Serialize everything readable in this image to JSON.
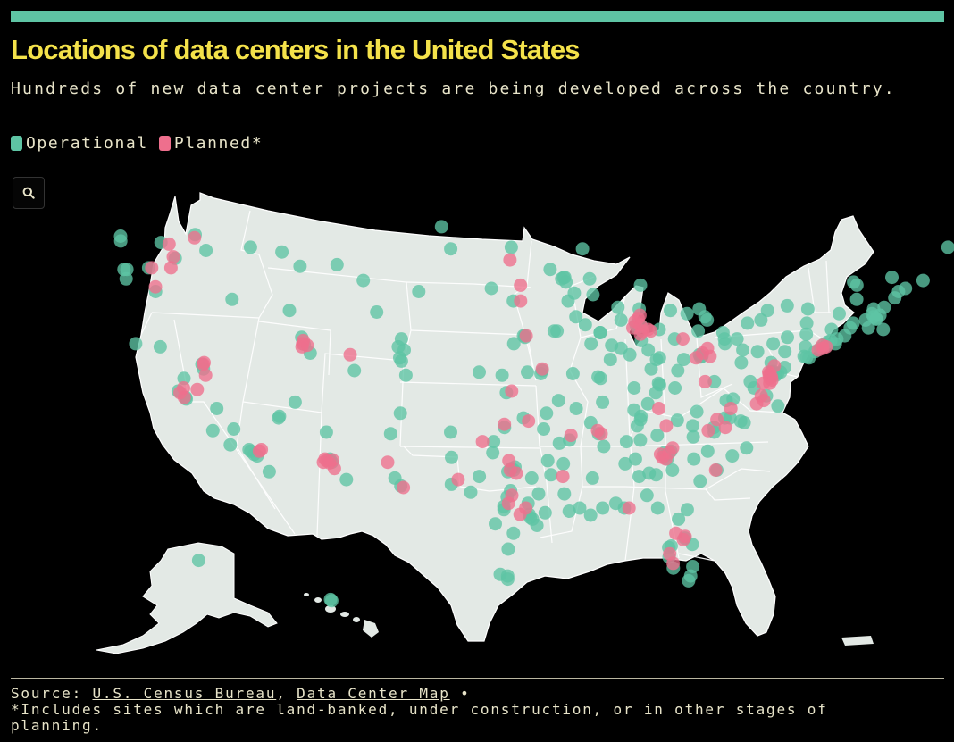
{
  "header": {
    "title": "Locations of data centers in the United States",
    "subtitle": "Hundreds of new data center projects are being developed across the country."
  },
  "legend": [
    {
      "label": "Operational",
      "color": "#5ec4a4"
    },
    {
      "label": "Planned*",
      "color": "#ee6f8d"
    }
  ],
  "controls": {
    "search_icon": "search-icon"
  },
  "colors": {
    "operational": "#5ec4a4",
    "planned": "#ee6f8d",
    "land": "#e3e9e5",
    "border": "#ffffff",
    "background": "#000000",
    "accent_bar": "#5ec4a4",
    "title": "#f4e24a"
  },
  "footer": {
    "source_label": "Source:",
    "source_1": "U.S. Census Bureau",
    "separator": ",",
    "source_2": "Data Center Map",
    "bullet": "•",
    "note": "*Includes sites which are land-banked, under construction, or in other stages of planning."
  },
  "map_data": {
    "operational": [
      [
        47.6,
        -122.3
      ],
      [
        47.3,
        -122.4
      ],
      [
        47.2,
        -119.8
      ],
      [
        46.2,
        -119.2
      ],
      [
        45.6,
        -121.2
      ],
      [
        45.5,
        -122.7
      ],
      [
        45.5,
        -122.9
      ],
      [
        44.1,
        -121.3
      ],
      [
        44.9,
        -123.0
      ],
      [
        47.7,
        -117.4
      ],
      [
        46.7,
        -117.0
      ],
      [
        43.6,
        -116.2
      ],
      [
        42.9,
        -112.4
      ],
      [
        45.7,
        -111.0
      ],
      [
        46.6,
        -112.0
      ],
      [
        45.8,
        -108.5
      ],
      [
        46.9,
        -114.0
      ],
      [
        40.76,
        -111.9
      ],
      [
        41.2,
        -111.97
      ],
      [
        40.2,
        -111.6
      ],
      [
        37.1,
        -113.6
      ],
      [
        37.8,
        -122.3
      ],
      [
        37.4,
        -121.9
      ],
      [
        37.3,
        -121.9
      ],
      [
        38.6,
        -121.5
      ],
      [
        39.5,
        -119.8
      ],
      [
        36.7,
        -119.8
      ],
      [
        35.4,
        -119.0
      ],
      [
        34.1,
        -118.3
      ],
      [
        34.0,
        -118.2
      ],
      [
        33.8,
        -118.0
      ],
      [
        33.7,
        -117.8
      ],
      [
        32.7,
        -117.2
      ],
      [
        34.4,
        -119.7
      ],
      [
        35.3,
        -120.7
      ],
      [
        40.8,
        -124.1
      ],
      [
        39.2,
        -119.8
      ],
      [
        40.6,
        -122.4
      ],
      [
        36.1,
        -115.2
      ],
      [
        36.2,
        -115.1
      ],
      [
        33.4,
        -112.0
      ],
      [
        33.5,
        -111.9
      ],
      [
        32.2,
        -110.9
      ],
      [
        33.3,
        -111.8
      ],
      [
        35.2,
        -111.7
      ],
      [
        35.1,
        -106.6
      ],
      [
        32.3,
        -106.8
      ],
      [
        36.4,
        -105.6
      ],
      [
        39.7,
        -105.0
      ],
      [
        39.9,
        -105.1
      ],
      [
        40.6,
        -105.1
      ],
      [
        38.8,
        -104.8
      ],
      [
        40.4,
        -104.7
      ],
      [
        39.1,
        -108.6
      ],
      [
        41.1,
        -104.8
      ],
      [
        42.8,
        -106.3
      ],
      [
        44.8,
        -106.9
      ],
      [
        46.9,
        -96.8
      ],
      [
        46.8,
        -100.8
      ],
      [
        48.2,
        -101.3
      ],
      [
        43.5,
        -96.7
      ],
      [
        44.1,
        -103.2
      ],
      [
        44.3,
        -98.2
      ],
      [
        41.3,
        -96.0
      ],
      [
        40.8,
        -96.7
      ],
      [
        39.1,
        -94.6
      ],
      [
        39.0,
        -95.7
      ],
      [
        37.7,
        -97.3
      ],
      [
        38.8,
        -97.6
      ],
      [
        39.0,
        -99.3
      ],
      [
        35.5,
        -97.5
      ],
      [
        36.1,
        -96.0
      ],
      [
        34.6,
        -98.4
      ],
      [
        35.2,
        -101.8
      ],
      [
        33.6,
        -101.9
      ],
      [
        31.8,
        -106.4
      ],
      [
        31.9,
        -102.1
      ],
      [
        32.8,
        -96.8
      ],
      [
        32.7,
        -97.3
      ],
      [
        33.0,
        -96.7
      ],
      [
        32.9,
        -97.0
      ],
      [
        30.3,
        -97.7
      ],
      [
        30.5,
        -97.7
      ],
      [
        29.4,
        -98.5
      ],
      [
        29.8,
        -95.4
      ],
      [
        29.7,
        -95.2
      ],
      [
        30.0,
        -95.5
      ],
      [
        27.8,
        -97.4
      ],
      [
        26.2,
        -98.2
      ],
      [
        31.5,
        -97.1
      ],
      [
        33.9,
        -98.5
      ],
      [
        31.1,
        -97.4
      ],
      [
        29.3,
        -94.8
      ],
      [
        26.1,
        -97.5
      ],
      [
        25.9,
        -97.5
      ],
      [
        30.1,
        -94.1
      ],
      [
        28.8,
        -96.9
      ],
      [
        32.4,
        -99.7
      ],
      [
        31.4,
        -100.5
      ],
      [
        44.98,
        -93.27
      ],
      [
        44.9,
        -93.4
      ],
      [
        45.5,
        -94.2
      ],
      [
        46.8,
        -92.1
      ],
      [
        44.0,
        -92.5
      ],
      [
        43.5,
        -92.9
      ],
      [
        41.6,
        -93.6
      ],
      [
        41.6,
        -93.8
      ],
      [
        42.0,
        -91.6
      ],
      [
        41.5,
        -90.5
      ],
      [
        42.5,
        -92.3
      ],
      [
        41.3,
        -95.9
      ],
      [
        41.2,
        -95.9
      ],
      [
        40.8,
        -91.1
      ],
      [
        38.6,
        -90.2
      ],
      [
        38.7,
        -90.4
      ],
      [
        37.2,
        -93.3
      ],
      [
        38.9,
        -92.3
      ],
      [
        36.4,
        -94.2
      ],
      [
        34.7,
        -92.3
      ],
      [
        35.8,
        -90.7
      ],
      [
        33.2,
        -92.7
      ],
      [
        32.5,
        -93.7
      ],
      [
        30.4,
        -91.1
      ],
      [
        29.95,
        -90.1
      ],
      [
        30.2,
        -92.0
      ],
      [
        32.3,
        -90.2
      ],
      [
        34.3,
        -89.5
      ],
      [
        30.4,
        -89.1
      ],
      [
        43.0,
        -87.9
      ],
      [
        43.1,
        -89.4
      ],
      [
        44.5,
        -88.0
      ],
      [
        44.9,
        -91.5
      ],
      [
        42.3,
        -89.1
      ],
      [
        41.9,
        -87.6
      ],
      [
        41.8,
        -87.9
      ],
      [
        42.0,
        -88.0
      ],
      [
        40.1,
        -88.2
      ],
      [
        39.8,
        -89.6
      ],
      [
        41.5,
        -90.5
      ],
      [
        40.7,
        -89.6
      ],
      [
        42.3,
        -83.0
      ],
      [
        42.5,
        -83.2
      ],
      [
        42.7,
        -84.5
      ],
      [
        42.9,
        -85.7
      ],
      [
        43.0,
        -83.7
      ],
      [
        41.7,
        -86.3
      ],
      [
        39.8,
        -86.2
      ],
      [
        39.9,
        -86.0
      ],
      [
        41.1,
        -85.1
      ],
      [
        40.4,
        -86.9
      ],
      [
        38.0,
        -87.6
      ],
      [
        39.2,
        -86.5
      ],
      [
        39.96,
        -83.0
      ],
      [
        40.0,
        -82.9
      ],
      [
        40.1,
        -83.1
      ],
      [
        41.5,
        -81.7
      ],
      [
        41.1,
        -81.5
      ],
      [
        39.1,
        -84.5
      ],
      [
        39.8,
        -84.2
      ],
      [
        41.6,
        -83.5
      ],
      [
        40.8,
        -81.4
      ],
      [
        38.3,
        -85.8
      ],
      [
        38.0,
        -84.5
      ],
      [
        36.2,
        -86.8
      ],
      [
        36.0,
        -86.8
      ],
      [
        35.1,
        -90.0
      ],
      [
        35.0,
        -85.3
      ],
      [
        35.96,
        -83.9
      ],
      [
        36.5,
        -82.5
      ],
      [
        36.6,
        -87.4
      ],
      [
        33.7,
        -84.4
      ],
      [
        33.8,
        -84.3
      ],
      [
        33.9,
        -84.5
      ],
      [
        33.5,
        -84.2
      ],
      [
        34.0,
        -84.0
      ],
      [
        32.1,
        -81.1
      ],
      [
        33.5,
        -86.8
      ],
      [
        34.7,
        -86.6
      ],
      [
        32.4,
        -86.3
      ],
      [
        30.7,
        -88.0
      ],
      [
        31.2,
        -85.4
      ],
      [
        32.5,
        -84.9
      ],
      [
        32.8,
        -83.6
      ],
      [
        33.5,
        -82.0
      ],
      [
        35.2,
        -80.8
      ],
      [
        35.8,
        -78.6
      ],
      [
        35.9,
        -78.9
      ],
      [
        36.1,
        -79.8
      ],
      [
        36.1,
        -80.2
      ],
      [
        35.6,
        -82.6
      ],
      [
        34.2,
        -77.9
      ],
      [
        35.5,
        -80.9
      ],
      [
        34.0,
        -81.0
      ],
      [
        32.8,
        -79.9
      ],
      [
        34.9,
        -82.4
      ],
      [
        33.7,
        -78.9
      ],
      [
        30.3,
        -81.7
      ],
      [
        28.5,
        -81.4
      ],
      [
        28.0,
        -82.5
      ],
      [
        27.9,
        -82.7
      ],
      [
        26.1,
        -80.1
      ],
      [
        25.8,
        -80.2
      ],
      [
        26.7,
        -80.1
      ],
      [
        30.4,
        -84.3
      ],
      [
        30.4,
        -87.2
      ],
      [
        29.7,
        -82.3
      ],
      [
        27.3,
        -82.5
      ],
      [
        26.6,
        -81.9
      ],
      [
        28.1,
        -80.6
      ],
      [
        38.9,
        -77.0
      ],
      [
        39.0,
        -77.5
      ],
      [
        38.95,
        -77.45
      ],
      [
        39.05,
        -77.4
      ],
      [
        38.8,
        -77.1
      ],
      [
        37.5,
        -77.4
      ],
      [
        36.85,
        -76.3
      ],
      [
        38.0,
        -78.5
      ],
      [
        37.3,
        -79.9
      ],
      [
        37.2,
        -80.4
      ],
      [
        38.4,
        -78.9
      ],
      [
        39.3,
        -76.6
      ],
      [
        39.0,
        -76.8
      ],
      [
        39.6,
        -77.7
      ],
      [
        38.4,
        -81.6
      ],
      [
        39.6,
        -79.9
      ],
      [
        39.95,
        -75.2
      ],
      [
        40.0,
        -75.4
      ],
      [
        40.4,
        -80.0
      ],
      [
        40.3,
        -76.9
      ],
      [
        40.6,
        -75.5
      ],
      [
        41.4,
        -75.7
      ],
      [
        42.1,
        -80.1
      ],
      [
        40.8,
        -77.9
      ],
      [
        40.7,
        -74.0
      ],
      [
        40.75,
        -74.2
      ],
      [
        40.5,
        -74.4
      ],
      [
        40.9,
        -74.0
      ],
      [
        40.3,
        -74.7
      ],
      [
        39.9,
        -75.0
      ],
      [
        41.0,
        -73.8
      ],
      [
        40.8,
        -73.4
      ],
      [
        42.7,
        -73.8
      ],
      [
        43.0,
        -76.1
      ],
      [
        43.2,
        -77.6
      ],
      [
        42.9,
        -78.9
      ],
      [
        41.7,
        -74.0
      ],
      [
        42.1,
        -75.9
      ],
      [
        44.7,
        -73.5
      ],
      [
        41.8,
        -72.7
      ],
      [
        41.3,
        -72.9
      ],
      [
        41.1,
        -73.4
      ],
      [
        41.8,
        -71.4
      ],
      [
        42.4,
        -71.1
      ],
      [
        42.35,
        -71.05
      ],
      [
        42.5,
        -71.3
      ],
      [
        42.3,
        -71.8
      ],
      [
        42.1,
        -72.6
      ],
      [
        42.7,
        -71.5
      ],
      [
        43.0,
        -71.5
      ],
      [
        43.1,
        -70.8
      ],
      [
        42.6,
        -70.9
      ],
      [
        41.7,
        -70.3
      ],
      [
        44.5,
        -73.2
      ],
      [
        43.7,
        -70.3
      ],
      [
        44.3,
        -69.8
      ],
      [
        44.8,
        -68.8
      ],
      [
        46.9,
        -68.0
      ],
      [
        61.2,
        -149.9
      ],
      [
        21.3,
        -157.9
      ],
      [
        21.4,
        -158.0
      ],
      [
        45.0,
        -93.2
      ],
      [
        44.7,
        -93.1
      ],
      [
        43.9,
        -91.2
      ],
      [
        41.0,
        -87.5
      ],
      [
        40.5,
        -88.9
      ],
      [
        37.7,
        -85.9
      ],
      [
        37.0,
        -86.4
      ],
      [
        35.6,
        -87.0
      ],
      [
        34.6,
        -87.7
      ],
      [
        33.2,
        -87.6
      ],
      [
        32.6,
        -85.5
      ],
      [
        31.3,
        -92.5
      ],
      [
        30.7,
        -95.6
      ],
      [
        31.3,
        -94.7
      ],
      [
        32.3,
        -95.3
      ],
      [
        33.4,
        -94.0
      ],
      [
        34.5,
        -93.1
      ],
      [
        35.4,
        -94.4
      ],
      [
        36.7,
        -91.9
      ],
      [
        37.1,
        -89.9
      ],
      [
        38.9,
        -94.7
      ],
      [
        38.2,
        -85.7
      ],
      [
        41.1,
        -80.6
      ],
      [
        40.3,
        -78.9
      ],
      [
        41.2,
        -77.0
      ],
      [
        42.3,
        -79.2
      ],
      [
        43.6,
        -72.9
      ],
      [
        45.0,
        -71.0
      ],
      [
        44.1,
        -70.2
      ]
    ],
    "planned": [
      [
        47.1,
        -119.3
      ],
      [
        45.6,
        -121.0
      ],
      [
        45.6,
        -119.7
      ],
      [
        44.4,
        -121.2
      ],
      [
        46.3,
        -119.3
      ],
      [
        37.7,
        -122.2
      ],
      [
        37.4,
        -122.0
      ],
      [
        38.0,
        -121.8
      ],
      [
        37.9,
        -120.8
      ],
      [
        34.0,
        -117.5
      ],
      [
        34.1,
        -117.3
      ],
      [
        39.5,
        -119.7
      ],
      [
        39.6,
        -119.6
      ],
      [
        38.8,
        -119.8
      ],
      [
        33.4,
        -112.2
      ],
      [
        33.3,
        -112.5
      ],
      [
        33.5,
        -112.3
      ],
      [
        33.25,
        -112.0
      ],
      [
        32.9,
        -111.7
      ],
      [
        33.45,
        -111.7
      ],
      [
        40.8,
        -112.0
      ],
      [
        40.7,
        -111.7
      ],
      [
        40.6,
        -112.1
      ],
      [
        41.0,
        -111.9
      ],
      [
        44.5,
        -96.2
      ],
      [
        43.5,
        -96.2
      ],
      [
        41.3,
        -95.8
      ],
      [
        39.2,
        -94.6
      ],
      [
        37.8,
        -96.9
      ],
      [
        35.7,
        -97.5
      ],
      [
        34.6,
        -99.3
      ],
      [
        32.2,
        -101.5
      ],
      [
        33.4,
        -97.2
      ],
      [
        32.6,
        -96.6
      ],
      [
        32.8,
        -97.1
      ],
      [
        30.7,
        -97.3
      ],
      [
        31.2,
        -97.0
      ],
      [
        30.0,
        -96.3
      ],
      [
        30.4,
        -95.8
      ],
      [
        42.2,
        -88.1
      ],
      [
        42.0,
        -87.7
      ],
      [
        41.6,
        -87.5
      ],
      [
        41.7,
        -87.1
      ],
      [
        41.6,
        -86.9
      ],
      [
        42.4,
        -87.9
      ],
      [
        42.6,
        -87.8
      ],
      [
        41.8,
        -88.2
      ],
      [
        41.4,
        -87.6
      ],
      [
        40.5,
        -82.6
      ],
      [
        40.0,
        -82.3
      ],
      [
        40.2,
        -82.9
      ],
      [
        39.9,
        -83.3
      ],
      [
        41.1,
        -84.5
      ],
      [
        38.9,
        -77.6
      ],
      [
        38.8,
        -77.6
      ],
      [
        39.0,
        -77.7
      ],
      [
        38.7,
        -77.4
      ],
      [
        38.6,
        -77.5
      ],
      [
        38.5,
        -77.3
      ],
      [
        38.3,
        -77.4
      ],
      [
        38.3,
        -77.9
      ],
      [
        37.5,
        -77.8
      ],
      [
        37.2,
        -77.5
      ],
      [
        37.0,
        -78.0
      ],
      [
        36.7,
        -79.9
      ],
      [
        39.4,
        -77.4
      ],
      [
        40.7,
        -74.3
      ],
      [
        40.5,
        -74.2
      ],
      [
        40.4,
        -74.5
      ],
      [
        40.6,
        -74.0
      ],
      [
        33.6,
        -84.6
      ],
      [
        33.8,
        -84.8
      ],
      [
        33.5,
        -84.3
      ],
      [
        33.9,
        -84.1
      ],
      [
        34.2,
        -83.9
      ],
      [
        32.8,
        -80.0
      ],
      [
        35.3,
        -81.3
      ],
      [
        35.5,
        -80.0
      ],
      [
        36.0,
        -80.8
      ],
      [
        35.1,
        -89.8
      ],
      [
        35.3,
        -90.1
      ],
      [
        38.4,
        -82.3
      ],
      [
        36.7,
        -85.5
      ],
      [
        35.6,
        -84.7
      ],
      [
        28.6,
        -81.4
      ],
      [
        28.4,
        -81.5
      ],
      [
        27.5,
        -82.5
      ],
      [
        31.7,
        -106.2
      ],
      [
        33.3,
        -107.2
      ],
      [
        35.9,
        -95.6
      ],
      [
        32.4,
        -92.7
      ],
      [
        28.8,
        -82.3
      ],
      [
        26.9,
        -82.0
      ],
      [
        30.4,
        -86.8
      ],
      [
        47.5,
        -117.5
      ],
      [
        35.0,
        -92.2
      ],
      [
        40.1,
        -108.7
      ],
      [
        46.1,
        -96.9
      ]
    ]
  }
}
